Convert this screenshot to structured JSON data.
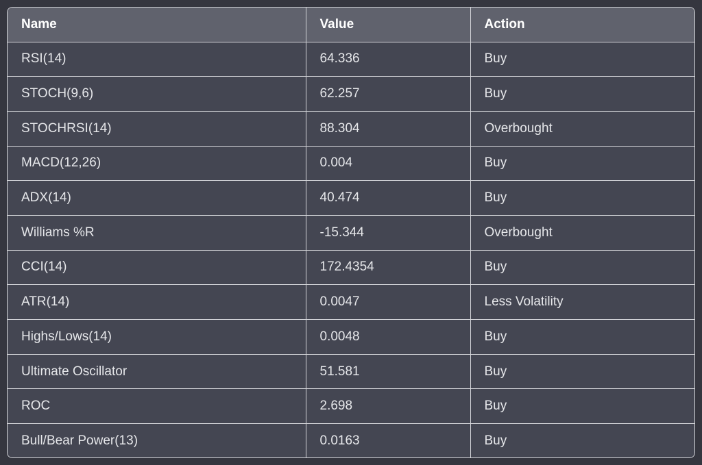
{
  "table": {
    "headers": [
      "Name",
      "Value",
      "Action"
    ],
    "rows": [
      [
        "RSI(14)",
        "64.336",
        "Buy"
      ],
      [
        "STOCH(9,6)",
        "62.257",
        "Buy"
      ],
      [
        "STOCHRSI(14)",
        "88.304",
        "Overbought"
      ],
      [
        "MACD(12,26)",
        "0.004",
        "Buy"
      ],
      [
        "ADX(14)",
        "40.474",
        "Buy"
      ],
      [
        "Williams %R",
        "-15.344",
        "Overbought"
      ],
      [
        "CCI(14)",
        "172.4354",
        "Buy"
      ],
      [
        "ATR(14)",
        "0.0047",
        "Less Volatility"
      ],
      [
        "Highs/Lows(14)",
        "0.0048",
        "Buy"
      ],
      [
        "Ultimate Oscillator",
        "51.581",
        "Buy"
      ],
      [
        "ROC",
        "2.698",
        "Buy"
      ],
      [
        "Bull/Bear Power(13)",
        "0.0163",
        "Buy"
      ]
    ]
  },
  "colors": {
    "page_background": "#35363f",
    "header_background": "#60626d",
    "row_background": "#444652",
    "border": "#d5d6da",
    "header_text": "#ffffff",
    "cell_text": "#e6e7ea"
  }
}
